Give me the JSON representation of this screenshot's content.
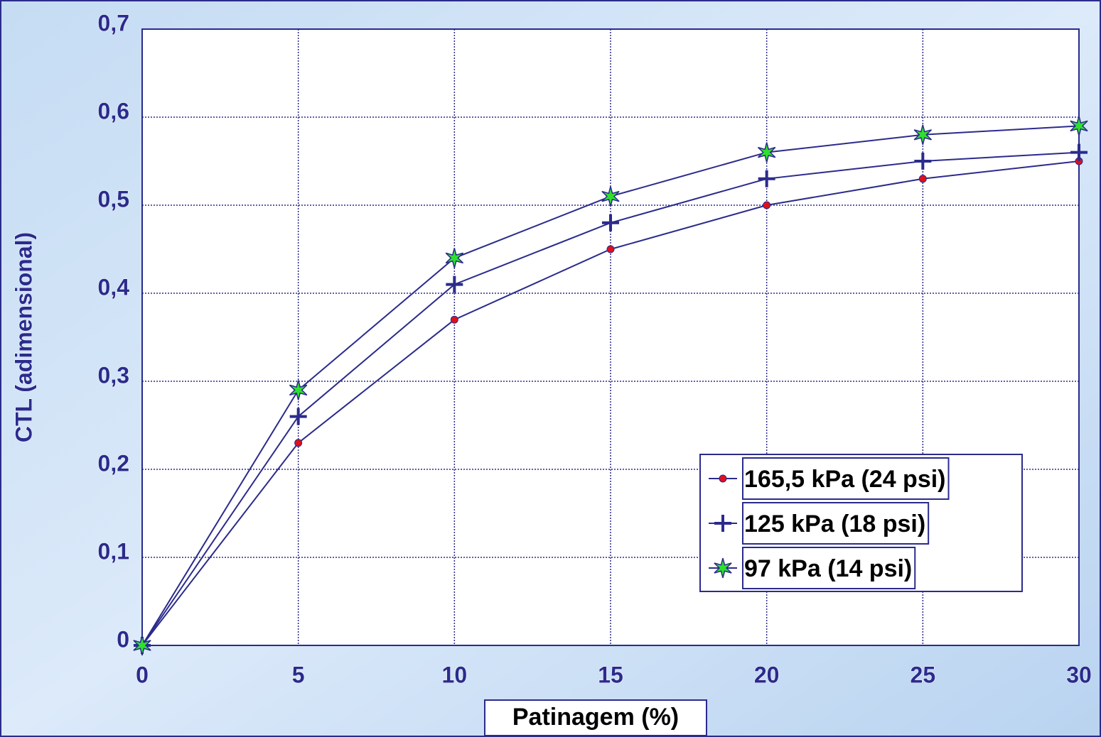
{
  "chart_data": {
    "type": "line",
    "x": [
      0,
      5,
      10,
      15,
      20,
      25,
      30
    ],
    "xlim": [
      0,
      30
    ],
    "xticks": [
      0,
      5,
      10,
      15,
      20,
      25,
      30
    ],
    "ylim": [
      0,
      0.7
    ],
    "yticks": [
      0,
      {
        "value": 0.1,
        "label": "0,1"
      },
      {
        "value": 0.2,
        "label": "0,2"
      },
      {
        "value": 0.3,
        "label": "0,3"
      },
      {
        "value": 0.4,
        "label": "0,4"
      },
      {
        "value": 0.5,
        "label": "0,5"
      },
      {
        "value": 0.6,
        "label": "0,6"
      },
      {
        "value": 0.7,
        "label": "0,7"
      }
    ],
    "xlabel": "Patinagem (%)",
    "ylabel": "CTL (adimensional)",
    "grid": true,
    "legend": "lower right",
    "series": [
      {
        "name": "165,5 kPa (24 psi)",
        "color": "#2b2b8c",
        "marker": "dot",
        "marker_color": "#e0101a",
        "values": [
          0,
          0.23,
          0.37,
          0.45,
          0.5,
          0.53,
          0.55
        ]
      },
      {
        "name": "125 kPa (18 psi)",
        "color": "#2b2b8c",
        "marker": "plus",
        "marker_color": "#2b2b8c",
        "values": [
          0,
          0.26,
          0.41,
          0.48,
          0.53,
          0.55,
          0.56
        ]
      },
      {
        "name": "97 kPa (14 psi)",
        "color": "#2b2b8c",
        "marker": "star",
        "marker_color": "#2fe02f",
        "values": [
          0,
          0.29,
          0.44,
          0.51,
          0.56,
          0.58,
          0.59
        ]
      }
    ]
  }
}
